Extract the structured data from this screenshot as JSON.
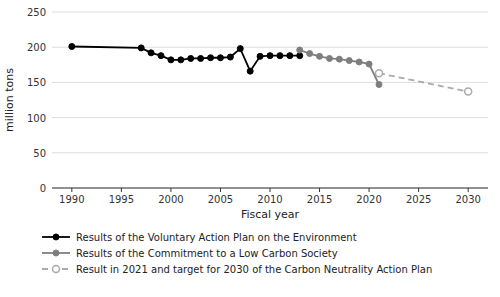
{
  "chart_data": {
    "type": "line",
    "x_label": "Fiscal year",
    "y_label": "million tons",
    "series": [
      {
        "name": "Results of the Voluntary Action Plan on the Environment",
        "color": "#000000",
        "marker": "circle",
        "line_style": "solid",
        "x": [
          1990,
          1997,
          1998,
          1999,
          2000,
          2001,
          2002,
          2003,
          2004,
          2005,
          2006,
          2007,
          2008,
          2009,
          2010,
          2011,
          2012,
          2013
        ],
        "values": [
          201,
          199,
          192,
          188,
          182,
          182,
          184,
          184,
          185,
          185,
          186,
          198,
          166,
          187,
          188,
          188,
          188,
          188
        ]
      },
      {
        "name": "Results  of the Commitment to a Low Carbon Society",
        "color": "#7f7f7f",
        "marker": "circle",
        "line_style": "solid",
        "x": [
          2013,
          2014,
          2015,
          2016,
          2017,
          2018,
          2019,
          2020,
          2021
        ],
        "values": [
          196,
          191,
          187,
          184,
          183,
          181,
          179,
          176,
          147
        ]
      },
      {
        "name": "Result in 2021 and target for 2030 of the Carbon Neutrality Action Plan",
        "color": "#aaaaaa",
        "marker": "open-circle",
        "line_style": "dashed",
        "x": [
          2021,
          2030
        ],
        "values": [
          163,
          137
        ]
      }
    ],
    "xlim": [
      1988,
      2032
    ],
    "ylim": [
      0,
      250
    ],
    "xticks": [
      1990,
      1995,
      2000,
      2005,
      2010,
      2015,
      2020,
      2025,
      2030
    ],
    "yticks": [
      0,
      50,
      100,
      150,
      200,
      250
    ],
    "grid": true,
    "legend": "bottom"
  }
}
